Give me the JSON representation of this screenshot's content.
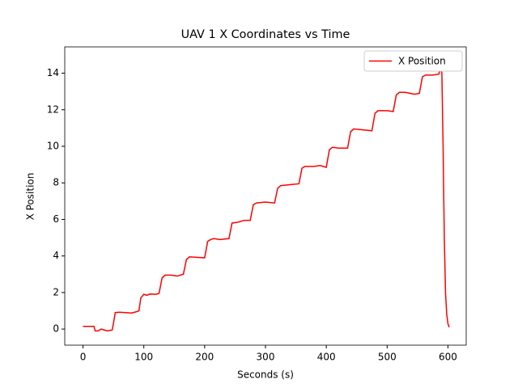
{
  "chart_data": {
    "type": "line",
    "title": "UAV 1 X Coordinates vs Time",
    "xlabel": "Seconds (s)",
    "ylabel": "X Position",
    "x": [
      0,
      15,
      18,
      20,
      25,
      30,
      35,
      40,
      48,
      50,
      53,
      60,
      70,
      80,
      88,
      92,
      95,
      100,
      105,
      110,
      120,
      125,
      130,
      135,
      145,
      155,
      165,
      170,
      175,
      190,
      200,
      205,
      210,
      215,
      225,
      240,
      245,
      255,
      265,
      275,
      280,
      285,
      300,
      315,
      320,
      325,
      340,
      355,
      360,
      365,
      380,
      390,
      400,
      405,
      410,
      420,
      435,
      440,
      445,
      460,
      475,
      480,
      485,
      500,
      510,
      515,
      520,
      530,
      545,
      553,
      558,
      563,
      575,
      585,
      588,
      590,
      592,
      594,
      596,
      598,
      600,
      602
    ],
    "series": [
      {
        "name": "X Position",
        "color": "#ff0000",
        "values": [
          0.15,
          0.15,
          0.15,
          -0.1,
          -0.1,
          0,
          -0.05,
          -0.1,
          -0.05,
          0.3,
          0.9,
          0.92,
          0.9,
          0.88,
          0.95,
          1.0,
          1.7,
          1.9,
          1.85,
          1.92,
          1.9,
          1.95,
          2.8,
          2.95,
          2.95,
          2.9,
          3.0,
          3.8,
          3.95,
          3.92,
          3.9,
          4.8,
          4.9,
          4.95,
          4.9,
          4.95,
          5.8,
          5.85,
          5.95,
          5.95,
          6.8,
          6.9,
          6.95,
          6.9,
          7.7,
          7.85,
          7.9,
          7.95,
          8.8,
          8.9,
          8.9,
          8.95,
          8.85,
          9.8,
          9.95,
          9.9,
          9.9,
          10.8,
          10.95,
          10.9,
          10.85,
          11.8,
          11.95,
          11.95,
          11.9,
          12.8,
          12.95,
          12.95,
          12.85,
          12.9,
          13.8,
          13.9,
          13.9,
          13.95,
          14.3,
          14.0,
          10,
          5,
          2,
          0.8,
          0.3,
          0.1
        ]
      }
    ],
    "xlim": [
      -30,
      630
    ],
    "ylim": [
      -0.88,
      15.44
    ],
    "xticks": [
      0,
      100,
      200,
      300,
      400,
      500,
      600
    ],
    "yticks": [
      0,
      2,
      4,
      6,
      8,
      10,
      12,
      14
    ],
    "legend": "upper right"
  }
}
